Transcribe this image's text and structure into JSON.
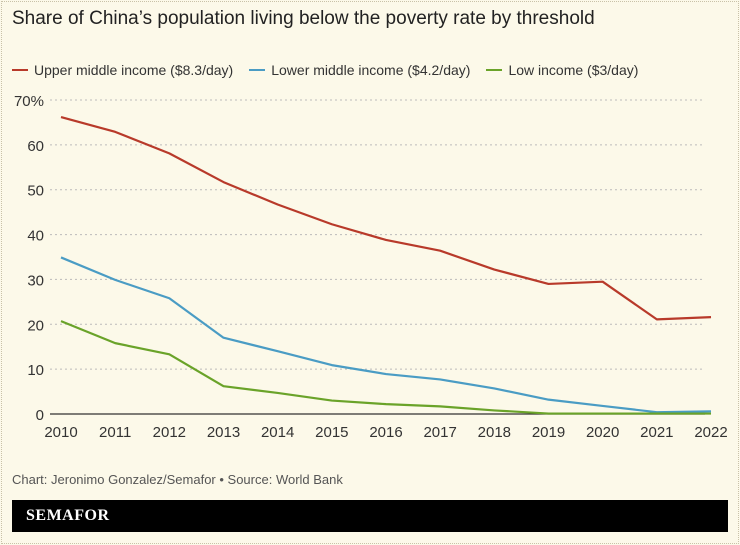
{
  "chart_data": {
    "type": "line",
    "title": "Share of China’s population living below the poverty rate by threshold",
    "x": [
      2010,
      2011,
      2012,
      2013,
      2014,
      2015,
      2016,
      2017,
      2018,
      2019,
      2020,
      2021,
      2022
    ],
    "xtick_labels": [
      "2010",
      "2011",
      "2012",
      "2013",
      "2014",
      "2015",
      "2016",
      "2017",
      "2018",
      "2019",
      "2020",
      "2021",
      "2022"
    ],
    "ylim": [
      0,
      70
    ],
    "yticks": [
      0,
      10,
      20,
      30,
      40,
      50,
      60,
      70
    ],
    "ytick_labels": [
      "0",
      "10",
      "20",
      "30",
      "40",
      "50",
      "60",
      "70%"
    ],
    "grid": true,
    "legend_placement": "top-left",
    "series": [
      {
        "name": "Upper middle income ($8.3/day)",
        "color": "#b83a2a",
        "values": [
          66.2,
          62.9,
          58.1,
          51.7,
          46.7,
          42.3,
          38.8,
          36.4,
          32.2,
          29.0,
          29.5,
          21.1,
          21.6
        ]
      },
      {
        "name": "Lower middle income ($4.2/day)",
        "color": "#4a9cc4",
        "values": [
          34.9,
          29.9,
          25.8,
          17.0,
          14.0,
          10.9,
          8.9,
          7.7,
          5.7,
          3.2,
          1.8,
          0.4,
          0.6
        ]
      },
      {
        "name": "Low income ($3/day)",
        "color": "#6aa329",
        "values": [
          20.7,
          15.8,
          13.3,
          6.2,
          4.7,
          3.0,
          2.2,
          1.7,
          0.8,
          0.1,
          0.1,
          0.1,
          0.1
        ]
      }
    ]
  },
  "credit": "Chart: Jeronimo Gonzalez/Semafor • Source: World Bank",
  "brand": "SEMAFOR"
}
